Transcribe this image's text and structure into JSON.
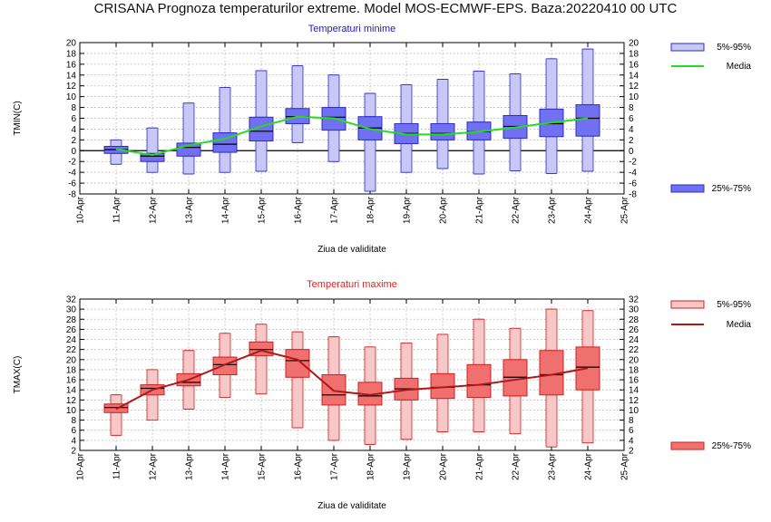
{
  "main_title": "CRISANA  Prognoza temperaturilor extreme.  Model MOS-ECMWF-EPS. Baza:20220410 00 UTC",
  "chart_data": [
    {
      "type": "box",
      "id": "tmin",
      "title": "Temperaturi minime",
      "ylabel": "TMIN(C)",
      "xlabel": "Ziua de validitate",
      "ylim": [
        -8,
        20
      ],
      "yticks": [
        -8,
        -6,
        -4,
        -2,
        0,
        2,
        4,
        6,
        8,
        10,
        12,
        14,
        16,
        18,
        20
      ],
      "ticks": [
        "10-Apr",
        "11-Apr",
        "12-Apr",
        "13-Apr",
        "14-Apr",
        "15-Apr",
        "16-Apr",
        "17-Apr",
        "18-Apr",
        "19-Apr",
        "20-Apr",
        "21-Apr",
        "22-Apr",
        "23-Apr",
        "24-Apr",
        "25-Apr"
      ],
      "legend": {
        "p5_95": "5%-95%",
        "mean": "Media",
        "p25_75": "25%-75%"
      },
      "colors": {
        "outer": "#c8c8f8",
        "inner": "#7070f0",
        "edge": "#2b2bc8",
        "mean": "#22dd22"
      },
      "boxes": [
        {
          "day": "11-Apr",
          "p5": -2.5,
          "p25": -0.5,
          "median": 0.2,
          "p75": 0.8,
          "p95": 2.0
        },
        {
          "day": "12-Apr",
          "p5": -4.0,
          "p25": -2.0,
          "median": -1.0,
          "p75": -0.5,
          "p95": 4.2
        },
        {
          "day": "13-Apr",
          "p5": -4.3,
          "p25": -1.0,
          "median": 0.6,
          "p75": 1.4,
          "p95": 8.8
        },
        {
          "day": "14-Apr",
          "p5": -4.0,
          "p25": -0.3,
          "median": 1.2,
          "p75": 3.3,
          "p95": 11.7
        },
        {
          "day": "15-Apr",
          "p5": -3.8,
          "p25": 1.8,
          "median": 3.6,
          "p75": 6.2,
          "p95": 14.8
        },
        {
          "day": "16-Apr",
          "p5": 1.5,
          "p25": 5.0,
          "median": 6.3,
          "p75": 7.8,
          "p95": 15.7
        },
        {
          "day": "17-Apr",
          "p5": -2.0,
          "p25": 3.8,
          "median": 6.2,
          "p75": 8.0,
          "p95": 14.0
        },
        {
          "day": "18-Apr",
          "p5": -7.5,
          "p25": 2.0,
          "median": 4.2,
          "p75": 6.3,
          "p95": 10.6
        },
        {
          "day": "19-Apr",
          "p5": -4.0,
          "p25": 1.3,
          "median": 3.2,
          "p75": 5.0,
          "p95": 12.2
        },
        {
          "day": "20-Apr",
          "p5": -3.3,
          "p25": 2.0,
          "median": 3.2,
          "p75": 5.0,
          "p95": 13.2
        },
        {
          "day": "21-Apr",
          "p5": -4.3,
          "p25": 2.0,
          "median": 3.5,
          "p75": 5.3,
          "p95": 14.7
        },
        {
          "day": "22-Apr",
          "p5": -3.7,
          "p25": 2.3,
          "median": 4.5,
          "p75": 6.5,
          "p95": 14.2
        },
        {
          "day": "23-Apr",
          "p5": -4.2,
          "p25": 2.6,
          "median": 5.0,
          "p75": 7.7,
          "p95": 17.0
        },
        {
          "day": "24-Apr",
          "p5": -3.8,
          "p25": 2.7,
          "median": 6.0,
          "p75": 8.5,
          "p95": 18.8
        }
      ],
      "mean": [
        0.3,
        -0.8,
        1.0,
        2.2,
        4.5,
        6.3,
        6.0,
        4.0,
        3.0,
        3.0,
        3.5,
        4.3,
        5.2,
        6.0
      ]
    },
    {
      "type": "box",
      "id": "tmax",
      "title": "Temperaturi maxime",
      "ylabel": "TMAX(C)",
      "xlabel": "Ziua de validitate",
      "ylim": [
        2,
        32
      ],
      "yticks": [
        2,
        4,
        6,
        8,
        10,
        12,
        14,
        16,
        18,
        20,
        22,
        24,
        26,
        28,
        30,
        32
      ],
      "ticks": [
        "10-Apr",
        "11-Apr",
        "12-Apr",
        "13-Apr",
        "14-Apr",
        "15-Apr",
        "16-Apr",
        "17-Apr",
        "18-Apr",
        "19-Apr",
        "20-Apr",
        "21-Apr",
        "22-Apr",
        "23-Apr",
        "24-Apr",
        "25-Apr"
      ],
      "legend": {
        "p5_95": "5%-95%",
        "mean": "Media",
        "p25_75": "25%-75%"
      },
      "colors": {
        "outer": "#f8c8c8",
        "inner": "#f07070",
        "edge": "#d02020",
        "mean": "#b01818"
      },
      "boxes": [
        {
          "day": "11-Apr",
          "p5": 5.0,
          "p25": 9.5,
          "median": 10.5,
          "p75": 11.2,
          "p95": 13.0
        },
        {
          "day": "12-Apr",
          "p5": 8.0,
          "p25": 13.0,
          "median": 14.3,
          "p75": 15.0,
          "p95": 18.0
        },
        {
          "day": "13-Apr",
          "p5": 10.2,
          "p25": 14.8,
          "median": 15.5,
          "p75": 17.2,
          "p95": 21.8
        },
        {
          "day": "14-Apr",
          "p5": 12.5,
          "p25": 17.0,
          "median": 19.0,
          "p75": 20.5,
          "p95": 25.2
        },
        {
          "day": "15-Apr",
          "p5": 13.2,
          "p25": 20.8,
          "median": 22.0,
          "p75": 23.5,
          "p95": 27.0
        },
        {
          "day": "16-Apr",
          "p5": 6.5,
          "p25": 16.5,
          "median": 19.8,
          "p75": 22.0,
          "p95": 25.5
        },
        {
          "day": "17-Apr",
          "p5": 4.0,
          "p25": 11.0,
          "median": 13.0,
          "p75": 17.0,
          "p95": 24.5
        },
        {
          "day": "18-Apr",
          "p5": 3.2,
          "p25": 11.0,
          "median": 12.8,
          "p75": 15.5,
          "p95": 22.5
        },
        {
          "day": "19-Apr",
          "p5": 4.2,
          "p25": 12.0,
          "median": 14.2,
          "p75": 16.3,
          "p95": 23.3
        },
        {
          "day": "20-Apr",
          "p5": 5.7,
          "p25": 12.3,
          "median": 14.5,
          "p75": 17.2,
          "p95": 25.0
        },
        {
          "day": "21-Apr",
          "p5": 5.7,
          "p25": 12.5,
          "median": 15.0,
          "p75": 19.0,
          "p95": 28.0
        },
        {
          "day": "22-Apr",
          "p5": 5.3,
          "p25": 12.8,
          "median": 16.5,
          "p75": 20.0,
          "p95": 26.2
        },
        {
          "day": "23-Apr",
          "p5": 2.7,
          "p25": 13.0,
          "median": 17.0,
          "p75": 21.8,
          "p95": 30.0
        },
        {
          "day": "24-Apr",
          "p5": 3.5,
          "p25": 14.0,
          "median": 18.5,
          "p75": 22.5,
          "p95": 29.7
        }
      ],
      "mean": [
        10.2,
        14.0,
        16.0,
        19.0,
        21.8,
        20.0,
        13.8,
        13.0,
        14.0,
        14.5,
        15.0,
        16.0,
        17.0,
        18.3
      ]
    }
  ]
}
